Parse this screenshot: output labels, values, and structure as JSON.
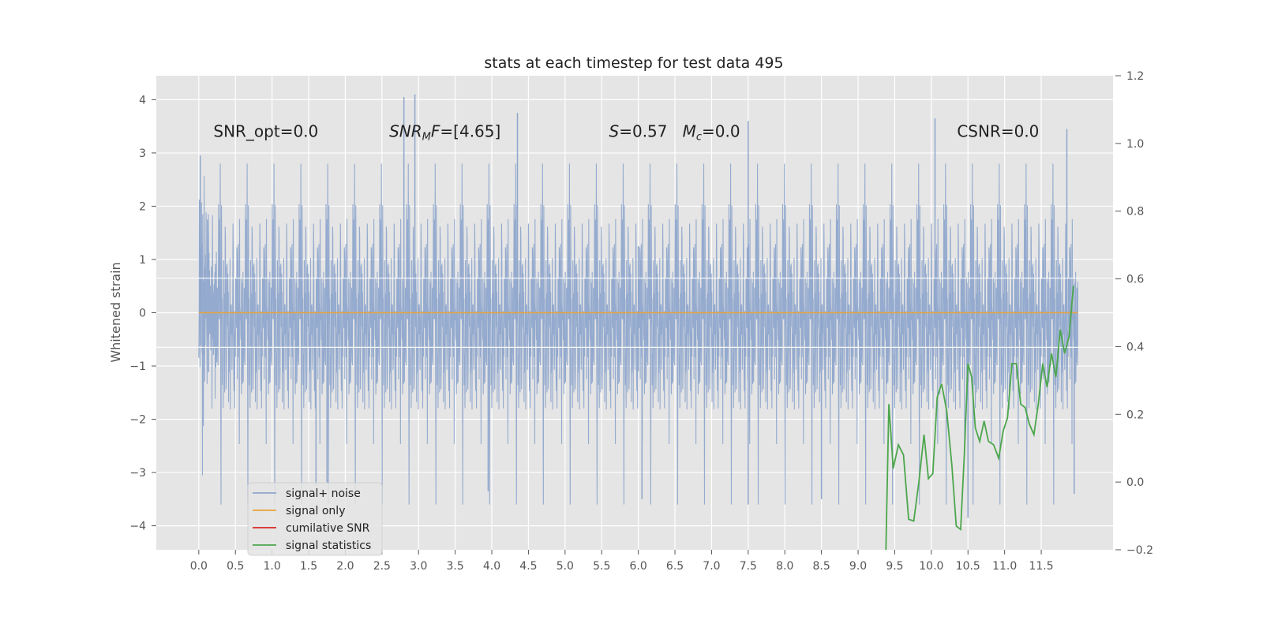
{
  "chart_data": {
    "type": "line",
    "title": "stats at each timestep for test data 495",
    "ylabel": "Whitened strain",
    "xlabel": "",
    "xlim": [
      -0.58,
      12.48
    ],
    "ylim": [
      -4.45,
      4.45
    ],
    "y2lim": [
      -0.2,
      1.2
    ],
    "grid": true,
    "legend_position": "lower-left",
    "x_ticks": [
      "0.0",
      "0.5",
      "1.0",
      "1.5",
      "2.0",
      "2.5",
      "3.0",
      "3.5",
      "4.0",
      "4.5",
      "5.0",
      "5.5",
      "6.0",
      "6.5",
      "7.0",
      "7.5",
      "8.0",
      "8.5",
      "9.0",
      "9.5",
      "10.0",
      "10.5",
      "11.0",
      "11.5"
    ],
    "x_tick_values": [
      0.0,
      0.5,
      1.0,
      1.5,
      2.0,
      2.5,
      3.0,
      3.5,
      4.0,
      4.5,
      5.0,
      5.5,
      6.0,
      6.5,
      7.0,
      7.5,
      8.0,
      8.5,
      9.0,
      9.5,
      10.0,
      10.5,
      11.0,
      11.5
    ],
    "y_ticks": [
      "4",
      "3",
      "2",
      "1",
      "0",
      "−1",
      "−2",
      "−3",
      "−4"
    ],
    "y_tick_values": [
      4,
      3,
      2,
      1,
      0,
      -1,
      -2,
      -3,
      -4
    ],
    "y2_ticks": [
      "1.2",
      "1.0",
      "0.8",
      "0.6",
      "0.4",
      "0.2",
      "0.0",
      "−0.2"
    ],
    "y2_tick_values": [
      1.2,
      1.0,
      0.8,
      0.6,
      0.4,
      0.2,
      0.0,
      -0.2
    ],
    "annotations": [
      {
        "text": "SNR_opt=0.0",
        "x": 0.2,
        "y": 3.3
      },
      {
        "text": "SNR_MF=[4.65]",
        "x": 2.6,
        "y": 3.3
      },
      {
        "text": "S=0.57   M_c=0.0",
        "x": 5.6,
        "y": 3.3
      },
      {
        "text": "CSNR=0.0",
        "x": 10.35,
        "y": 3.3
      }
    ],
    "series": [
      {
        "name": "signal+ noise",
        "color": "#8fa6cc",
        "x_range": [
          0.0,
          12.0
        ],
        "envelope_max": 4.1,
        "envelope_min": -3.6,
        "spikes": [
          {
            "x": 0.02,
            "y": 2.95
          },
          {
            "x": 2.8,
            "y": 4.05
          },
          {
            "x": 2.95,
            "y": 4.1
          },
          {
            "x": 4.35,
            "y": 3.75
          },
          {
            "x": 7.5,
            "y": 3.6
          },
          {
            "x": 10.05,
            "y": 3.65
          },
          {
            "x": 11.85,
            "y": 3.45
          },
          {
            "x": 1.6,
            "y": -3.25
          },
          {
            "x": 1.75,
            "y": -3.2
          },
          {
            "x": 3.95,
            "y": -3.35
          },
          {
            "x": 6.05,
            "y": -3.5
          },
          {
            "x": 7.5,
            "y": -3.6
          },
          {
            "x": 8.5,
            "y": -3.5
          },
          {
            "x": 10.5,
            "y": -3.85
          },
          {
            "x": 11.95,
            "y": -3.4
          },
          {
            "x": 6.0,
            "y": 1.25
          },
          {
            "x": 6.0,
            "y": -1.1
          }
        ]
      },
      {
        "name": "signal only",
        "color": "#e8a33a",
        "x": [
          0.0,
          12.0
        ],
        "y": [
          0.0,
          0.0
        ]
      },
      {
        "name": "cumilative SNR",
        "color": "#d62728",
        "x": [],
        "y": []
      },
      {
        "name": "signal statistics",
        "color": "#4ca64c",
        "axis": "right",
        "x": [
          9.38,
          9.42,
          9.48,
          9.55,
          9.62,
          9.69,
          9.76,
          9.83,
          9.9,
          9.96,
          10.02,
          10.08,
          10.14,
          10.21,
          10.28,
          10.34,
          10.4,
          10.45,
          10.5,
          10.55,
          10.6,
          10.66,
          10.72,
          10.78,
          10.85,
          10.92,
          10.98,
          11.04,
          11.1,
          11.16,
          11.22,
          11.28,
          11.34,
          11.4,
          11.46,
          11.52,
          11.58,
          11.64,
          11.7,
          11.76,
          11.82,
          11.88,
          11.94
        ],
        "y": [
          -0.2,
          0.23,
          0.04,
          0.11,
          0.08,
          -0.11,
          -0.115,
          0.0,
          0.14,
          0.01,
          0.025,
          0.25,
          0.29,
          0.21,
          0.05,
          -0.13,
          -0.14,
          0.08,
          0.35,
          0.31,
          0.16,
          0.12,
          0.18,
          0.12,
          0.11,
          0.07,
          0.15,
          0.19,
          0.35,
          0.35,
          0.23,
          0.22,
          0.17,
          0.14,
          0.23,
          0.35,
          0.28,
          0.38,
          0.31,
          0.45,
          0.38,
          0.43,
          0.58
        ]
      }
    ]
  }
}
